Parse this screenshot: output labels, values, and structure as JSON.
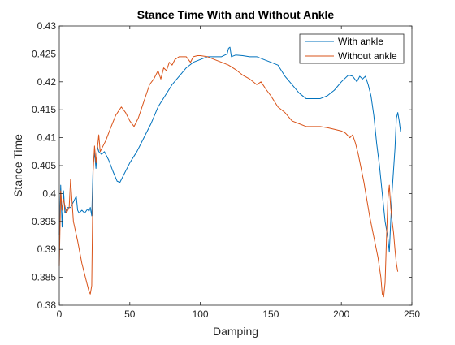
{
  "chart_data": {
    "type": "line",
    "title": "Stance Time With and Without Ankle",
    "xlabel": "Damping",
    "ylabel": "Stance Time",
    "xlim": [
      0,
      250
    ],
    "ylim": [
      0.38,
      0.43
    ],
    "x_ticks": [
      "0",
      "50",
      "100",
      "150",
      "200",
      "250"
    ],
    "y_ticks": [
      "0.38",
      "0.385",
      "0.39",
      "0.395",
      "0.4",
      "0.405",
      "0.41",
      "0.415",
      "0.42",
      "0.425",
      "0.43"
    ],
    "grid": false,
    "legend_position": "top-right",
    "series": [
      {
        "name": "With ankle",
        "color": "#0072BD",
        "points": [
          [
            0,
            0.3925
          ],
          [
            1,
            0.4015
          ],
          [
            2,
            0.394
          ],
          [
            3,
            0.4005
          ],
          [
            4,
            0.3965
          ],
          [
            6,
            0.3975
          ],
          [
            8,
            0.3975
          ],
          [
            10,
            0.3985
          ],
          [
            12,
            0.3995
          ],
          [
            13,
            0.397
          ],
          [
            14,
            0.3965
          ],
          [
            16,
            0.397
          ],
          [
            18,
            0.3965
          ],
          [
            20,
            0.3972
          ],
          [
            21,
            0.3968
          ],
          [
            22,
            0.3975
          ],
          [
            23,
            0.396
          ],
          [
            24,
            0.405
          ],
          [
            25,
            0.4075
          ],
          [
            26,
            0.4045
          ],
          [
            27,
            0.4085
          ],
          [
            28,
            0.4075
          ],
          [
            30,
            0.407
          ],
          [
            32,
            0.4075
          ],
          [
            35,
            0.406
          ],
          [
            38,
            0.404
          ],
          [
            41,
            0.4022
          ],
          [
            43,
            0.402
          ],
          [
            45,
            0.403
          ],
          [
            48,
            0.4045
          ],
          [
            50,
            0.4055
          ],
          [
            55,
            0.4075
          ],
          [
            60,
            0.41
          ],
          [
            65,
            0.4125
          ],
          [
            70,
            0.4155
          ],
          [
            75,
            0.4175
          ],
          [
            80,
            0.4195
          ],
          [
            85,
            0.421
          ],
          [
            90,
            0.4225
          ],
          [
            95,
            0.4235
          ],
          [
            100,
            0.424
          ],
          [
            105,
            0.4245
          ],
          [
            110,
            0.4245
          ],
          [
            115,
            0.4245
          ],
          [
            119,
            0.425
          ],
          [
            120,
            0.426
          ],
          [
            121,
            0.4262
          ],
          [
            122,
            0.4245
          ],
          [
            125,
            0.4248
          ],
          [
            130,
            0.4247
          ],
          [
            135,
            0.4245
          ],
          [
            140,
            0.4245
          ],
          [
            145,
            0.424
          ],
          [
            150,
            0.4235
          ],
          [
            155,
            0.423
          ],
          [
            160,
            0.421
          ],
          [
            165,
            0.4195
          ],
          [
            170,
            0.418
          ],
          [
            175,
            0.417
          ],
          [
            180,
            0.417
          ],
          [
            185,
            0.417
          ],
          [
            190,
            0.4175
          ],
          [
            195,
            0.4185
          ],
          [
            200,
            0.42
          ],
          [
            205,
            0.4212
          ],
          [
            208,
            0.421
          ],
          [
            211,
            0.42
          ],
          [
            213,
            0.421
          ],
          [
            215,
            0.4205
          ],
          [
            217,
            0.421
          ],
          [
            219,
            0.4195
          ],
          [
            221,
            0.4175
          ],
          [
            223,
            0.414
          ],
          [
            225,
            0.409
          ],
          [
            227,
            0.405
          ],
          [
            229,
            0.4
          ],
          [
            231,
            0.395
          ],
          [
            233,
            0.392
          ],
          [
            234,
            0.3895
          ],
          [
            236,
            0.4005
          ],
          [
            238,
            0.408
          ],
          [
            239,
            0.4135
          ],
          [
            240,
            0.4145
          ],
          [
            241,
            0.413
          ],
          [
            242,
            0.411
          ]
        ]
      },
      {
        "name": "Without ankle",
        "color": "#D95319",
        "points": [
          [
            0,
            0.387
          ],
          [
            1,
            0.4005
          ],
          [
            2,
            0.397
          ],
          [
            3,
            0.399
          ],
          [
            5,
            0.3965
          ],
          [
            7,
            0.3975
          ],
          [
            8,
            0.4025
          ],
          [
            10,
            0.395
          ],
          [
            13,
            0.3915
          ],
          [
            16,
            0.3875
          ],
          [
            19,
            0.3845
          ],
          [
            21,
            0.3825
          ],
          [
            22,
            0.382
          ],
          [
            23,
            0.3835
          ],
          [
            24,
            0.404
          ],
          [
            25,
            0.4085
          ],
          [
            26,
            0.4055
          ],
          [
            27,
            0.408
          ],
          [
            28,
            0.4105
          ],
          [
            29,
            0.4075
          ],
          [
            31,
            0.4085
          ],
          [
            33,
            0.4095
          ],
          [
            36,
            0.4115
          ],
          [
            40,
            0.414
          ],
          [
            44,
            0.4155
          ],
          [
            47,
            0.4145
          ],
          [
            50,
            0.413
          ],
          [
            53,
            0.412
          ],
          [
            56,
            0.4135
          ],
          [
            60,
            0.4165
          ],
          [
            64,
            0.4195
          ],
          [
            67,
            0.4205
          ],
          [
            70,
            0.422
          ],
          [
            72,
            0.4205
          ],
          [
            74,
            0.4225
          ],
          [
            76,
            0.422
          ],
          [
            78,
            0.4235
          ],
          [
            80,
            0.423
          ],
          [
            82,
            0.424
          ],
          [
            85,
            0.4245
          ],
          [
            90,
            0.4245
          ],
          [
            93,
            0.4235
          ],
          [
            95,
            0.4245
          ],
          [
            98,
            0.4247
          ],
          [
            100,
            0.4247
          ],
          [
            105,
            0.4245
          ],
          [
            110,
            0.424
          ],
          [
            115,
            0.4235
          ],
          [
            120,
            0.423
          ],
          [
            125,
            0.4222
          ],
          [
            130,
            0.4212
          ],
          [
            135,
            0.4205
          ],
          [
            140,
            0.4195
          ],
          [
            143,
            0.42
          ],
          [
            147,
            0.4185
          ],
          [
            150,
            0.4175
          ],
          [
            155,
            0.4155
          ],
          [
            160,
            0.4145
          ],
          [
            165,
            0.413
          ],
          [
            170,
            0.4125
          ],
          [
            175,
            0.412
          ],
          [
            180,
            0.412
          ],
          [
            185,
            0.412
          ],
          [
            190,
            0.4118
          ],
          [
            195,
            0.4115
          ],
          [
            200,
            0.4112
          ],
          [
            203,
            0.4108
          ],
          [
            206,
            0.41
          ],
          [
            208,
            0.4105
          ],
          [
            210,
            0.409
          ],
          [
            212,
            0.407
          ],
          [
            214,
            0.4045
          ],
          [
            216,
            0.402
          ],
          [
            218,
            0.399
          ],
          [
            220,
            0.396
          ],
          [
            222,
            0.3935
          ],
          [
            224,
            0.391
          ],
          [
            226,
            0.3885
          ],
          [
            228,
            0.385
          ],
          [
            229,
            0.382
          ],
          [
            230,
            0.3815
          ],
          [
            231,
            0.384
          ],
          [
            232,
            0.392
          ],
          [
            233,
            0.399
          ],
          [
            234,
            0.4015
          ],
          [
            235,
            0.3975
          ],
          [
            236,
            0.395
          ],
          [
            237,
            0.393
          ],
          [
            238,
            0.39
          ],
          [
            239,
            0.3875
          ],
          [
            240,
            0.386
          ]
        ]
      }
    ]
  }
}
